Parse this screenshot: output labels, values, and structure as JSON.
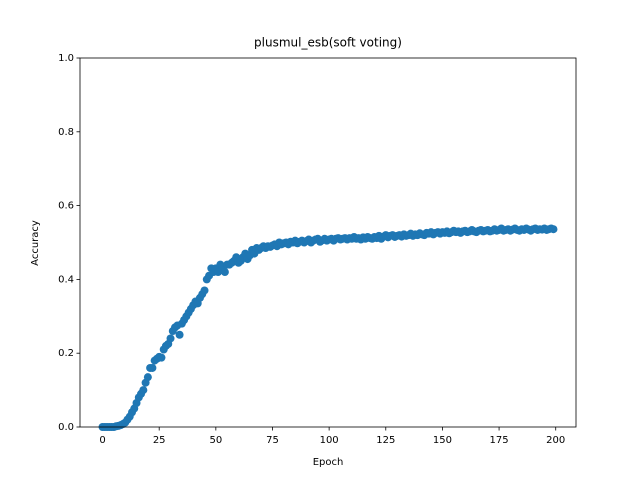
{
  "chart_data": {
    "type": "scatter",
    "title": "plusmul_esb(soft voting)",
    "x_label": "Epoch",
    "y_label": "Accuracy",
    "x": [
      0,
      1,
      2,
      3,
      4,
      5,
      6,
      7,
      8,
      9,
      10,
      11,
      12,
      13,
      14,
      15,
      16,
      17,
      18,
      19,
      20,
      21,
      22,
      23,
      24,
      25,
      26,
      27,
      28,
      29,
      30,
      31,
      32,
      33,
      34,
      35,
      36,
      37,
      38,
      39,
      40,
      41,
      42,
      43,
      44,
      45,
      46,
      47,
      48,
      49,
      50,
      51,
      52,
      53,
      54,
      55,
      56,
      57,
      58,
      59,
      60,
      61,
      62,
      63,
      64,
      65,
      66,
      67,
      68,
      69,
      70,
      71,
      72,
      73,
      74,
      75,
      76,
      77,
      78,
      79,
      80,
      81,
      82,
      83,
      84,
      85,
      86,
      87,
      88,
      89,
      90,
      91,
      92,
      93,
      94,
      95,
      96,
      97,
      98,
      99,
      100,
      101,
      102,
      103,
      104,
      105,
      106,
      107,
      108,
      109,
      110,
      111,
      112,
      113,
      114,
      115,
      116,
      117,
      118,
      119,
      120,
      121,
      122,
      123,
      124,
      125,
      126,
      127,
      128,
      129,
      130,
      131,
      132,
      133,
      134,
      135,
      136,
      137,
      138,
      139,
      140,
      141,
      142,
      143,
      144,
      145,
      146,
      147,
      148,
      149,
      150,
      151,
      152,
      153,
      154,
      155,
      156,
      157,
      158,
      159,
      160,
      161,
      162,
      163,
      164,
      165,
      166,
      167,
      168,
      169,
      170,
      171,
      172,
      173,
      174,
      175,
      176,
      177,
      178,
      179,
      180,
      181,
      182,
      183,
      184,
      185,
      186,
      187,
      188,
      189,
      190,
      191,
      192,
      193,
      194,
      195,
      196,
      197,
      198,
      199
    ],
    "values": [
      0,
      0,
      0,
      0,
      0,
      0,
      0.002,
      0.003,
      0.005,
      0.008,
      0.012,
      0.02,
      0.028,
      0.04,
      0.05,
      0.065,
      0.08,
      0.09,
      0.1,
      0.12,
      0.135,
      0.16,
      0.16,
      0.18,
      0.185,
      0.19,
      0.188,
      0.21,
      0.22,
      0.225,
      0.24,
      0.26,
      0.27,
      0.275,
      0.25,
      0.28,
      0.29,
      0.3,
      0.31,
      0.32,
      0.33,
      0.34,
      0.335,
      0.35,
      0.36,
      0.37,
      0.4,
      0.41,
      0.43,
      0.42,
      0.43,
      0.42,
      0.44,
      0.435,
      0.42,
      0.44,
      0.44,
      0.445,
      0.45,
      0.46,
      0.445,
      0.45,
      0.46,
      0.47,
      0.455,
      0.465,
      0.48,
      0.47,
      0.485,
      0.48,
      0.485,
      0.49,
      0.485,
      0.49,
      0.488,
      0.492,
      0.495,
      0.49,
      0.5,
      0.495,
      0.498,
      0.5,
      0.495,
      0.502,
      0.5,
      0.505,
      0.498,
      0.502,
      0.505,
      0.5,
      0.504,
      0.508,
      0.5,
      0.505,
      0.508,
      0.51,
      0.502,
      0.506,
      0.51,
      0.505,
      0.508,
      0.51,
      0.505,
      0.51,
      0.512,
      0.508,
      0.51,
      0.512,
      0.508,
      0.512,
      0.51,
      0.515,
      0.51,
      0.512,
      0.508,
      0.514,
      0.51,
      0.515,
      0.512,
      0.51,
      0.515,
      0.512,
      0.518,
      0.51,
      0.516,
      0.52,
      0.514,
      0.518,
      0.52,
      0.515,
      0.518,
      0.52,
      0.516,
      0.522,
      0.518,
      0.52,
      0.524,
      0.518,
      0.522,
      0.52,
      0.525,
      0.522,
      0.52,
      0.526,
      0.524,
      0.528,
      0.522,
      0.526,
      0.528,
      0.524,
      0.528,
      0.526,
      0.53,
      0.525,
      0.528,
      0.532,
      0.528,
      0.53,
      0.526,
      0.53,
      0.532,
      0.528,
      0.53,
      0.534,
      0.53,
      0.528,
      0.532,
      0.534,
      0.53,
      0.532,
      0.534,
      0.53,
      0.532,
      0.536,
      0.532,
      0.534,
      0.538,
      0.532,
      0.534,
      0.536,
      0.532,
      0.535,
      0.538,
      0.534,
      0.532,
      0.536,
      0.534,
      0.538,
      0.535,
      0.532,
      0.536,
      0.538,
      0.534,
      0.536,
      0.535,
      0.538,
      0.534,
      0.536,
      0.538,
      0.536
    ],
    "color": "#1f77b4",
    "xlim": [
      -9.95,
      208.95
    ],
    "xticks": [
      0,
      25,
      50,
      75,
      100,
      125,
      150,
      175,
      200
    ],
    "ylim": [
      0,
      1
    ],
    "yticks": [
      {
        "value": 0,
        "label": "0.0"
      },
      0.2,
      0.4,
      0.6,
      0.8,
      {
        "value": 1,
        "label": "1.0"
      }
    ]
  }
}
